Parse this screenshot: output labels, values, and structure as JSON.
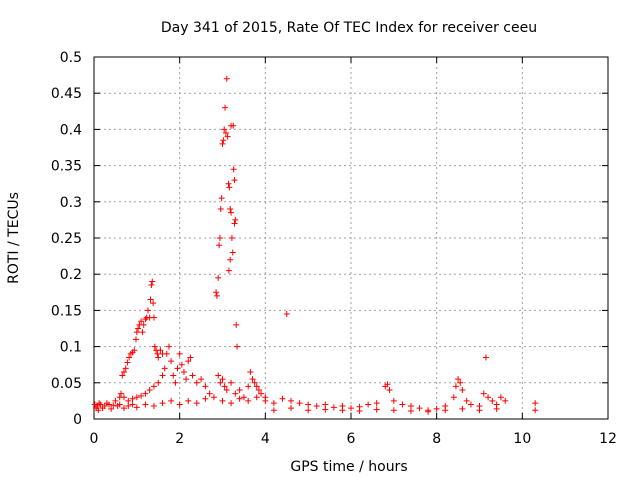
{
  "chart_data": {
    "type": "scatter",
    "title": "Day 341 of 2015, Rate Of TEC Index for receiver ceeu",
    "xlabel": "GPS time / hours",
    "ylabel": "ROTI / TECUs",
    "xlim": [
      0,
      12
    ],
    "ylim": [
      0,
      0.5
    ],
    "x_ticks": [
      0,
      2,
      4,
      6,
      8,
      10,
      12
    ],
    "x_tick_labels": [
      "0",
      "2",
      "4",
      "6",
      "8",
      "10",
      "12"
    ],
    "y_ticks": [
      0,
      0.05,
      0.1,
      0.15,
      0.2,
      0.25,
      0.3,
      0.35,
      0.4,
      0.45,
      0.5
    ],
    "y_tick_labels": [
      "0",
      "0.05",
      "0.1",
      "0.15",
      "0.2",
      "0.25",
      "0.3",
      "0.35",
      "0.4",
      "0.45",
      "0.5"
    ],
    "grid": true,
    "marker": "+",
    "color": "#ff0000",
    "series": [
      {
        "name": "ROTI",
        "points": [
          [
            0.02,
            0.02
          ],
          [
            0.05,
            0.015
          ],
          [
            0.08,
            0.018
          ],
          [
            0.1,
            0.012
          ],
          [
            0.12,
            0.022
          ],
          [
            0.15,
            0.02
          ],
          [
            0.2,
            0.015
          ],
          [
            0.25,
            0.018
          ],
          [
            0.3,
            0.022
          ],
          [
            0.35,
            0.02
          ],
          [
            0.4,
            0.014
          ],
          [
            0.45,
            0.019
          ],
          [
            0.5,
            0.025
          ],
          [
            0.55,
            0.018
          ],
          [
            0.6,
            0.03
          ],
          [
            0.63,
            0.035
          ],
          [
            0.66,
            0.06
          ],
          [
            0.7,
            0.065
          ],
          [
            0.74,
            0.07
          ],
          [
            0.78,
            0.078
          ],
          [
            0.82,
            0.085
          ],
          [
            0.86,
            0.09
          ],
          [
            0.9,
            0.092
          ],
          [
            0.94,
            0.095
          ],
          [
            0.98,
            0.11
          ],
          [
            1.0,
            0.12
          ],
          [
            1.03,
            0.125
          ],
          [
            1.06,
            0.13
          ],
          [
            1.1,
            0.135
          ],
          [
            1.13,
            0.12
          ],
          [
            1.16,
            0.13
          ],
          [
            1.2,
            0.138
          ],
          [
            1.23,
            0.14
          ],
          [
            1.26,
            0.15
          ],
          [
            1.3,
            0.14
          ],
          [
            1.32,
            0.165
          ],
          [
            1.34,
            0.185
          ],
          [
            1.36,
            0.19
          ],
          [
            1.38,
            0.16
          ],
          [
            1.4,
            0.14
          ],
          [
            1.42,
            0.1
          ],
          [
            1.45,
            0.095
          ],
          [
            1.48,
            0.09
          ],
          [
            1.5,
            0.085
          ],
          [
            1.55,
            0.095
          ],
          [
            1.6,
            0.09
          ],
          [
            0.7,
            0.03
          ],
          [
            0.8,
            0.025
          ],
          [
            0.9,
            0.028
          ],
          [
            1.0,
            0.03
          ],
          [
            1.1,
            0.032
          ],
          [
            1.2,
            0.035
          ],
          [
            1.3,
            0.04
          ],
          [
            1.4,
            0.045
          ],
          [
            1.5,
            0.05
          ],
          [
            1.6,
            0.06
          ],
          [
            1.65,
            0.07
          ],
          [
            1.7,
            0.09
          ],
          [
            1.75,
            0.1
          ],
          [
            1.8,
            0.08
          ],
          [
            1.85,
            0.06
          ],
          [
            1.9,
            0.05
          ],
          [
            1.95,
            0.07
          ],
          [
            2.0,
            0.09
          ],
          [
            2.05,
            0.075
          ],
          [
            2.1,
            0.065
          ],
          [
            2.15,
            0.055
          ],
          [
            2.2,
            0.08
          ],
          [
            2.25,
            0.085
          ],
          [
            2.3,
            0.06
          ],
          [
            2.4,
            0.05
          ],
          [
            2.5,
            0.055
          ],
          [
            2.6,
            0.045
          ],
          [
            2.7,
            0.035
          ],
          [
            0.6,
            0.02
          ],
          [
            0.7,
            0.015
          ],
          [
            0.8,
            0.018
          ],
          [
            0.9,
            0.02
          ],
          [
            1.0,
            0.016
          ],
          [
            1.2,
            0.02
          ],
          [
            1.4,
            0.018
          ],
          [
            1.6,
            0.022
          ],
          [
            1.8,
            0.025
          ],
          [
            2.0,
            0.02
          ],
          [
            2.2,
            0.025
          ],
          [
            2.4,
            0.022
          ],
          [
            2.6,
            0.028
          ],
          [
            2.8,
            0.03
          ],
          [
            2.85,
            0.175
          ],
          [
            2.87,
            0.17
          ],
          [
            2.9,
            0.195
          ],
          [
            2.92,
            0.24
          ],
          [
            2.94,
            0.25
          ],
          [
            2.96,
            0.29
          ],
          [
            2.98,
            0.305
          ],
          [
            3.0,
            0.38
          ],
          [
            3.02,
            0.385
          ],
          [
            3.04,
            0.4
          ],
          [
            3.06,
            0.43
          ],
          [
            3.08,
            0.395
          ],
          [
            3.1,
            0.47
          ],
          [
            3.12,
            0.39
          ],
          [
            3.14,
            0.325
          ],
          [
            3.16,
            0.32
          ],
          [
            3.18,
            0.29
          ],
          [
            3.2,
            0.285
          ],
          [
            3.22,
            0.25
          ],
          [
            3.24,
            0.23
          ],
          [
            3.26,
            0.345
          ],
          [
            3.28,
            0.27
          ],
          [
            3.3,
            0.275
          ],
          [
            3.32,
            0.13
          ],
          [
            3.34,
            0.1
          ],
          [
            3.2,
            0.405
          ],
          [
            3.25,
            0.405
          ],
          [
            3.15,
            0.205
          ],
          [
            3.18,
            0.22
          ],
          [
            3.28,
            0.33
          ],
          [
            2.9,
            0.06
          ],
          [
            2.95,
            0.05
          ],
          [
            3.0,
            0.055
          ],
          [
            3.05,
            0.045
          ],
          [
            3.1,
            0.04
          ],
          [
            3.2,
            0.05
          ],
          [
            3.3,
            0.035
          ],
          [
            3.4,
            0.04
          ],
          [
            3.5,
            0.03
          ],
          [
            3.6,
            0.045
          ],
          [
            3.65,
            0.065
          ],
          [
            3.7,
            0.055
          ],
          [
            3.75,
            0.05
          ],
          [
            3.8,
            0.045
          ],
          [
            3.85,
            0.04
          ],
          [
            3.9,
            0.035
          ],
          [
            4.0,
            0.03
          ],
          [
            3.0,
            0.025
          ],
          [
            3.2,
            0.022
          ],
          [
            3.4,
            0.028
          ],
          [
            3.6,
            0.025
          ],
          [
            3.8,
            0.03
          ],
          [
            4.0,
            0.025
          ],
          [
            4.2,
            0.022
          ],
          [
            4.4,
            0.028
          ],
          [
            4.5,
            0.145
          ],
          [
            4.6,
            0.025
          ],
          [
            4.8,
            0.022
          ],
          [
            5.0,
            0.02
          ],
          [
            5.2,
            0.018
          ],
          [
            5.4,
            0.02
          ],
          [
            5.6,
            0.016
          ],
          [
            5.8,
            0.018
          ],
          [
            6.0,
            0.015
          ],
          [
            6.2,
            0.017
          ],
          [
            6.4,
            0.02
          ],
          [
            6.6,
            0.022
          ],
          [
            6.8,
            0.045
          ],
          [
            6.85,
            0.048
          ],
          [
            6.9,
            0.04
          ],
          [
            7.0,
            0.025
          ],
          [
            7.2,
            0.02
          ],
          [
            7.4,
            0.018
          ],
          [
            7.6,
            0.015
          ],
          [
            7.8,
            0.012
          ],
          [
            8.0,
            0.014
          ],
          [
            8.2,
            0.018
          ],
          [
            8.4,
            0.03
          ],
          [
            8.45,
            0.045
          ],
          [
            8.5,
            0.055
          ],
          [
            8.55,
            0.05
          ],
          [
            8.6,
            0.04
          ],
          [
            8.7,
            0.025
          ],
          [
            8.8,
            0.02
          ],
          [
            9.0,
            0.018
          ],
          [
            9.1,
            0.035
          ],
          [
            9.15,
            0.085
          ],
          [
            9.2,
            0.03
          ],
          [
            9.3,
            0.025
          ],
          [
            9.4,
            0.02
          ],
          [
            9.5,
            0.03
          ],
          [
            9.6,
            0.025
          ],
          [
            4.2,
            0.012
          ],
          [
            4.6,
            0.015
          ],
          [
            5.0,
            0.012
          ],
          [
            5.4,
            0.013
          ],
          [
            5.8,
            0.012
          ],
          [
            6.2,
            0.011
          ],
          [
            6.6,
            0.013
          ],
          [
            7.0,
            0.012
          ],
          [
            7.4,
            0.011
          ],
          [
            7.8,
            0.01
          ],
          [
            8.2,
            0.012
          ],
          [
            8.6,
            0.014
          ],
          [
            9.0,
            0.012
          ],
          [
            9.4,
            0.014
          ],
          [
            10.3,
            0.022
          ],
          [
            10.3,
            0.012
          ]
        ]
      }
    ]
  }
}
